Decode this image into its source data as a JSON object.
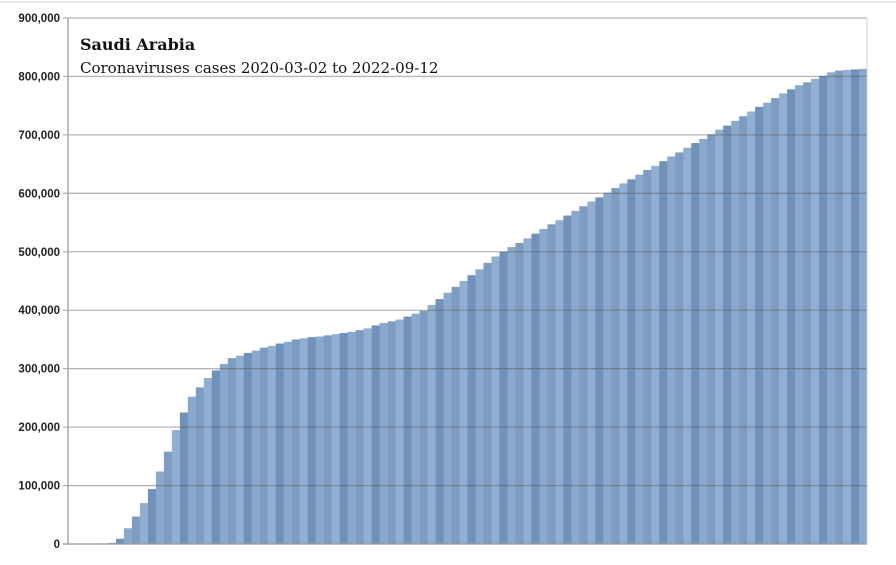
{
  "chart_data": {
    "type": "bar",
    "title": "Saudi Arabia",
    "subtitle": "Coronaviruses cases 2020-03-02 to 2022-09-12",
    "xlabel": "",
    "ylabel": "",
    "ylim": [
      0,
      900000
    ],
    "yticks": [
      "0",
      "100,000",
      "200,000",
      "300,000",
      "400,000",
      "500,000",
      "600,000",
      "700,000",
      "800,000",
      "900,000"
    ],
    "ytick_values": [
      0,
      100000,
      200000,
      300000,
      400000,
      500000,
      600000,
      700000,
      800000,
      900000
    ],
    "grid": true,
    "bar_color": "#7f9fc4",
    "values": [
      0,
      0,
      500,
      800,
      1000,
      2000,
      9000,
      27000,
      47000,
      70000,
      94000,
      124000,
      158000,
      195000,
      225000,
      252000,
      268000,
      284000,
      297000,
      308000,
      318000,
      322000,
      327000,
      331000,
      336000,
      339000,
      343000,
      346000,
      350000,
      352000,
      354000,
      355000,
      357000,
      359000,
      361000,
      363000,
      366000,
      369000,
      374000,
      378000,
      381000,
      384000,
      389000,
      394000,
      399000,
      409000,
      419000,
      430000,
      440000,
      450000,
      460000,
      470000,
      481000,
      492000,
      500000,
      508000,
      515000,
      523000,
      531000,
      539000,
      547000,
      554000,
      562000,
      570000,
      578000,
      586000,
      593000,
      601000,
      609000,
      617000,
      624000,
      632000,
      640000,
      647000,
      655000,
      663000,
      670000,
      678000,
      686000,
      693000,
      701000,
      709000,
      716000,
      724000,
      732000,
      740000,
      748000,
      755000,
      763000,
      771000,
      778000,
      785000,
      790000,
      796000,
      801000,
      807000,
      810000,
      811000,
      812000,
      813000
    ]
  }
}
